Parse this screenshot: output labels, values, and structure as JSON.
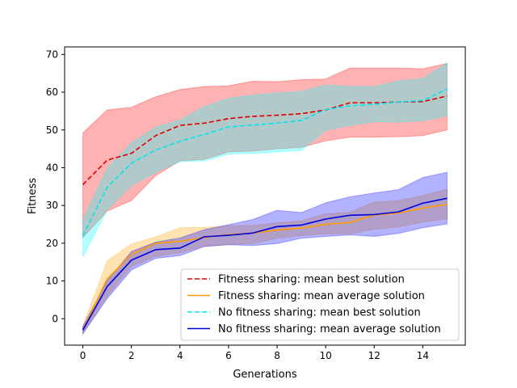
{
  "chart_data": {
    "type": "line",
    "xlabel": "Generations",
    "ylabel": "Fitness",
    "xlim": [
      -0.75,
      15.75
    ],
    "ylim": [
      -7,
      72
    ],
    "xticks": [
      0,
      2,
      4,
      6,
      8,
      10,
      12,
      14
    ],
    "yticks": [
      0,
      10,
      20,
      30,
      40,
      50,
      60,
      70
    ],
    "grid": false,
    "legend_position": "lower-right",
    "x": [
      0,
      1,
      2,
      3,
      4,
      5,
      6,
      7,
      8,
      9,
      10,
      11,
      12,
      13,
      14,
      15
    ],
    "series": [
      {
        "name": "Fitness sharing: mean best solution",
        "style": "dashed",
        "color": "#dd0000",
        "band_color": "#ff0000",
        "values": [
          35.5,
          42,
          43.8,
          48.5,
          51.2,
          51.8,
          53,
          53.6,
          53.9,
          54.3,
          55.3,
          57.2,
          57.2,
          57.4,
          57.5,
          59
        ],
        "upper": [
          49.2,
          55.3,
          56,
          58.8,
          60.7,
          61.5,
          61.7,
          62.9,
          62.8,
          63.3,
          63.5,
          66.4,
          66.4,
          66.4,
          66.2,
          67.6
        ],
        "lower": [
          21.5,
          28.5,
          31.3,
          37.9,
          41.8,
          42.2,
          44.2,
          44.4,
          45,
          45.4,
          47.1,
          48.1,
          48.1,
          48.2,
          48.5,
          50
        ]
      },
      {
        "name": "Fitness sharing: mean average solution",
        "style": "solid",
        "color": "#ff9900",
        "band_color": "#ffa500",
        "values": [
          -3,
          10.5,
          17,
          20,
          20.5,
          21.5,
          22.3,
          22.7,
          23.5,
          24,
          25,
          25.5,
          27.5,
          28,
          29.3,
          30.3
        ],
        "upper": [
          -2,
          15.3,
          19.8,
          21.7,
          24.1,
          24.2,
          24.6,
          24.7,
          25.4,
          25.9,
          27.8,
          28.2,
          30.9,
          31.3,
          32.6,
          34.3
        ],
        "lower": [
          -4,
          6,
          13.8,
          16.5,
          17.5,
          19.2,
          19.6,
          19.9,
          21.3,
          22,
          22.5,
          22.5,
          23.7,
          24.3,
          25.6,
          26.4
        ]
      },
      {
        "name": "No fitness sharing: mean best solution",
        "style": "dashed",
        "color": "#00e5ee",
        "band_color": "#00ffff",
        "values": [
          22,
          34.8,
          41.2,
          44.7,
          47,
          48.8,
          50.8,
          51.3,
          51.8,
          52.5,
          55.4,
          56.4,
          56.8,
          57.4,
          57.8,
          60.8
        ],
        "upper": [
          26.3,
          39.8,
          46.6,
          50.7,
          52.6,
          56.2,
          58.4,
          59.2,
          59.8,
          60.2,
          61.9,
          61.5,
          61.5,
          63,
          63.6,
          67.8
        ],
        "lower": [
          16.4,
          28.8,
          35.3,
          38.8,
          41.6,
          41.8,
          43.6,
          43.8,
          44.2,
          44.6,
          49.9,
          51.2,
          52.2,
          52.1,
          52.4,
          53.8
        ]
      },
      {
        "name": "No fitness sharing: mean average solution",
        "style": "solid",
        "color": "#0000dd",
        "band_color": "#0000ff",
        "values": [
          -3,
          8.5,
          15.5,
          18.3,
          18.7,
          21.7,
          22.1,
          22.7,
          24.4,
          24.8,
          26.4,
          27.4,
          27.6,
          28.3,
          30.6,
          31.9
        ],
        "upper": [
          -2,
          10,
          17.8,
          20.3,
          21.4,
          23.6,
          24.9,
          26.3,
          28.7,
          28.1,
          30.7,
          32.3,
          33.3,
          34.2,
          37.4,
          38.8
        ],
        "lower": [
          -4,
          5.3,
          12.9,
          16,
          16.7,
          19.1,
          19.6,
          19.4,
          19.9,
          21.3,
          21.8,
          22.2,
          21.8,
          22.6,
          24.1,
          25.1
        ]
      }
    ]
  }
}
